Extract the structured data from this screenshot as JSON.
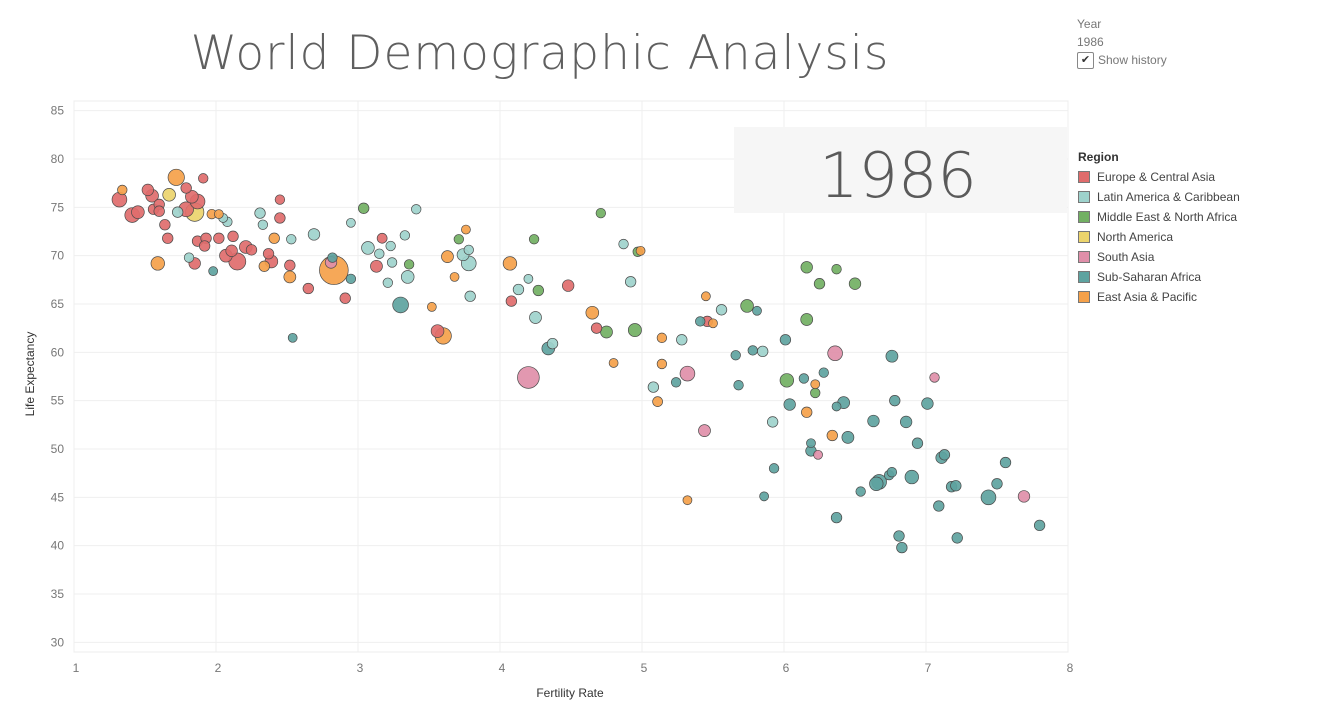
{
  "page": {
    "title": "World Demographic Analysis"
  },
  "controls": {
    "year_label": "Year",
    "year_value": "1986",
    "show_history_label": "Show history",
    "show_history_checked": true
  },
  "legend": {
    "title": "Region",
    "items": [
      {
        "label": "Europe & Central Asia",
        "color": "#e06c6c"
      },
      {
        "label": "Latin America & Caribbean",
        "color": "#9ed2cc"
      },
      {
        "label": "Middle East & North Africa",
        "color": "#72b063"
      },
      {
        "label": "North America",
        "color": "#ecd46c"
      },
      {
        "label": "South Asia",
        "color": "#df8fa9"
      },
      {
        "label": "Sub-Saharan Africa",
        "color": "#5ea3a0"
      },
      {
        "label": "East Asia & Pacific",
        "color": "#f5a14a"
      }
    ]
  },
  "chart_data": {
    "type": "scatter",
    "title": "World Demographic Analysis",
    "year_overlay": "1986",
    "xlabel": "Fertility Rate",
    "ylabel": "Life Expectancy",
    "xlim": [
      1,
      8
    ],
    "ylim": [
      29,
      86
    ],
    "xticks": [
      1,
      2,
      3,
      4,
      5,
      6,
      7,
      8
    ],
    "yticks": [
      30,
      35,
      40,
      45,
      50,
      55,
      60,
      65,
      70,
      75,
      80,
      85
    ],
    "grid": true,
    "legend_position": "right",
    "size_encoding": "population (relative bubble size, 1-10)",
    "series": [
      {
        "name": "Europe & Central Asia",
        "points": [
          [
            1.32,
            75.8,
            2
          ],
          [
            1.41,
            74.2,
            2
          ],
          [
            1.45,
            74.5,
            1.5
          ],
          [
            1.52,
            76.8,
            1.2
          ],
          [
            1.55,
            76.2,
            1.5
          ],
          [
            1.56,
            74.8,
            1
          ],
          [
            1.6,
            75.3,
            1
          ],
          [
            1.6,
            74.6,
            1
          ],
          [
            1.64,
            73.2,
            1
          ],
          [
            1.66,
            71.8,
            1
          ],
          [
            1.79,
            77.0,
            1
          ],
          [
            1.79,
            74.8,
            2
          ],
          [
            1.83,
            76.1,
            1.5
          ],
          [
            1.87,
            75.6,
            2
          ],
          [
            1.85,
            69.2,
            1.2
          ],
          [
            1.87,
            71.5,
            1
          ],
          [
            1.91,
            78.0,
            0.8
          ],
          [
            1.93,
            71.8,
            1
          ],
          [
            1.92,
            71.0,
            1
          ],
          [
            2.02,
            71.8,
            1
          ],
          [
            2.07,
            70.0,
            1.5
          ],
          [
            2.11,
            70.5,
            1.2
          ],
          [
            2.12,
            72.0,
            1
          ],
          [
            2.15,
            69.4,
            2.7
          ],
          [
            2.21,
            70.9,
            1.5
          ],
          [
            2.25,
            70.6,
            1
          ],
          [
            2.37,
            70.2,
            1
          ],
          [
            2.39,
            69.4,
            1.5
          ],
          [
            2.45,
            75.8,
            0.8
          ],
          [
            2.45,
            73.9,
            1
          ],
          [
            2.52,
            69.0,
            1
          ],
          [
            2.65,
            66.6,
            1
          ],
          [
            2.91,
            65.6,
            1
          ],
          [
            3.13,
            68.9,
            1.3
          ],
          [
            3.17,
            71.8,
            0.9
          ],
          [
            3.56,
            62.2,
            1.5
          ],
          [
            4.08,
            65.3,
            1
          ],
          [
            4.48,
            66.9,
            1.2
          ],
          [
            4.68,
            62.5,
            1
          ],
          [
            5.46,
            63.2,
            1
          ]
        ]
      },
      {
        "name": "Latin America & Caribbean",
        "points": [
          [
            1.73,
            74.5,
            1
          ],
          [
            1.81,
            69.8,
            0.8
          ],
          [
            2.05,
            73.9,
            0.7
          ],
          [
            2.08,
            73.5,
            0.8
          ],
          [
            2.31,
            74.4,
            1
          ],
          [
            2.33,
            73.2,
            0.8
          ],
          [
            2.53,
            71.7,
            0.8
          ],
          [
            2.69,
            72.2,
            1.2
          ],
          [
            2.95,
            73.4,
            0.7
          ],
          [
            3.07,
            70.8,
            1.5
          ],
          [
            3.15,
            70.2,
            0.8
          ],
          [
            3.21,
            67.2,
            0.8
          ],
          [
            3.23,
            71.0,
            0.8
          ],
          [
            3.24,
            69.3,
            0.8
          ],
          [
            3.33,
            72.1,
            0.8
          ],
          [
            3.35,
            67.8,
            1.5
          ],
          [
            3.41,
            74.8,
            0.8
          ],
          [
            3.74,
            70.1,
            1.3
          ],
          [
            3.78,
            70.6,
            0.8
          ],
          [
            3.78,
            69.2,
            2
          ],
          [
            3.79,
            65.8,
            1
          ],
          [
            4.13,
            66.5,
            1
          ],
          [
            4.2,
            67.6,
            0.7
          ],
          [
            4.25,
            63.6,
            1.3
          ],
          [
            4.37,
            60.9,
            1
          ],
          [
            4.87,
            71.2,
            0.8
          ],
          [
            4.92,
            67.3,
            1
          ],
          [
            5.08,
            56.4,
            1
          ],
          [
            5.28,
            61.3,
            1
          ],
          [
            5.56,
            64.4,
            1
          ],
          [
            5.85,
            60.1,
            1
          ],
          [
            5.92,
            52.8,
            1
          ]
        ]
      },
      {
        "name": "Middle East & North Africa",
        "points": [
          [
            3.04,
            74.9,
            1
          ],
          [
            3.36,
            69.1,
            0.8
          ],
          [
            3.71,
            71.7,
            0.8
          ],
          [
            4.24,
            71.7,
            0.8
          ],
          [
            4.27,
            66.4,
            1
          ],
          [
            4.71,
            74.4,
            0.8
          ],
          [
            4.75,
            62.1,
            1.3
          ],
          [
            4.95,
            62.3,
            1.6
          ],
          [
            4.97,
            70.4,
            0.8
          ],
          [
            5.74,
            64.8,
            1.5
          ],
          [
            6.02,
            57.1,
            1.7
          ],
          [
            6.16,
            68.8,
            1.2
          ],
          [
            6.16,
            63.4,
            1.3
          ],
          [
            6.22,
            55.8,
            0.8
          ],
          [
            6.25,
            67.1,
            1
          ],
          [
            6.37,
            68.6,
            0.8
          ],
          [
            6.5,
            67.1,
            1.2
          ]
        ]
      },
      {
        "name": "North America",
        "points": [
          [
            1.67,
            76.3,
            1.5
          ],
          [
            1.85,
            74.5,
            3.2
          ]
        ]
      },
      {
        "name": "South Asia",
        "points": [
          [
            2.81,
            69.3,
            1.2
          ],
          [
            4.2,
            57.4,
            4.5
          ],
          [
            5.32,
            57.8,
            2
          ],
          [
            5.44,
            51.9,
            1.3
          ],
          [
            6.24,
            49.4,
            0.7
          ],
          [
            6.36,
            59.9,
            2
          ],
          [
            7.06,
            57.4,
            0.8
          ],
          [
            7.69,
            45.1,
            1.2
          ]
        ]
      },
      {
        "name": "Sub-Saharan Africa",
        "points": [
          [
            1.98,
            68.4,
            0.7
          ],
          [
            2.54,
            61.5,
            0.7
          ],
          [
            2.82,
            69.8,
            0.8
          ],
          [
            2.95,
            67.6,
            0.8
          ],
          [
            3.3,
            64.9,
            2.3
          ],
          [
            4.34,
            60.4,
            1.5
          ],
          [
            5.24,
            56.9,
            0.8
          ],
          [
            5.41,
            63.2,
            0.8
          ],
          [
            5.66,
            59.7,
            0.8
          ],
          [
            5.68,
            56.6,
            0.8
          ],
          [
            5.78,
            60.2,
            0.8
          ],
          [
            5.81,
            64.3,
            0.7
          ],
          [
            5.86,
            45.1,
            0.7
          ],
          [
            5.93,
            48.0,
            0.8
          ],
          [
            6.01,
            61.3,
            1
          ],
          [
            6.04,
            54.6,
            1.2
          ],
          [
            6.14,
            57.3,
            0.8
          ],
          [
            6.19,
            50.6,
            0.7
          ],
          [
            6.19,
            49.8,
            1
          ],
          [
            6.28,
            57.9,
            0.8
          ],
          [
            6.37,
            42.9,
            1
          ],
          [
            6.37,
            54.4,
            0.7
          ],
          [
            6.42,
            54.8,
            1.3
          ],
          [
            6.45,
            51.2,
            1.3
          ],
          [
            6.54,
            45.6,
            0.8
          ],
          [
            6.63,
            52.9,
            1.2
          ],
          [
            6.65,
            46.4,
            1.7
          ],
          [
            6.67,
            46.6,
            2
          ],
          [
            6.74,
            47.3,
            0.8
          ],
          [
            6.76,
            47.6,
            0.8
          ],
          [
            6.76,
            59.6,
            1.3
          ],
          [
            6.78,
            55.0,
            1
          ],
          [
            6.81,
            41.0,
            1
          ],
          [
            6.83,
            39.8,
            1
          ],
          [
            6.86,
            52.8,
            1.2
          ],
          [
            6.9,
            47.1,
            1.7
          ],
          [
            6.94,
            50.6,
            1
          ],
          [
            7.01,
            54.7,
            1.2
          ],
          [
            7.09,
            44.1,
            1
          ],
          [
            7.11,
            49.1,
            1.2
          ],
          [
            7.13,
            49.4,
            1
          ],
          [
            7.18,
            46.1,
            1
          ],
          [
            7.21,
            46.2,
            1
          ],
          [
            7.22,
            40.8,
            1
          ],
          [
            7.44,
            45.0,
            2
          ],
          [
            7.5,
            46.4,
            1
          ],
          [
            7.56,
            48.6,
            1
          ],
          [
            7.8,
            42.1,
            1
          ]
        ]
      },
      {
        "name": "East Asia & Pacific",
        "points": [
          [
            1.34,
            76.8,
            0.8
          ],
          [
            1.59,
            69.2,
            1.7
          ],
          [
            1.72,
            78.1,
            2.5
          ],
          [
            1.97,
            74.3,
            0.8
          ],
          [
            2.02,
            74.3,
            0.7
          ],
          [
            2.34,
            68.9,
            1
          ],
          [
            2.41,
            71.8,
            1
          ],
          [
            2.52,
            67.8,
            1.3
          ],
          [
            2.83,
            68.5,
            8
          ],
          [
            3.52,
            64.7,
            0.7
          ],
          [
            3.6,
            61.7,
            2.5
          ],
          [
            3.63,
            69.9,
            1.3
          ],
          [
            3.68,
            67.8,
            0.7
          ],
          [
            3.76,
            72.7,
            0.7
          ],
          [
            4.07,
            69.2,
            1.7
          ],
          [
            4.65,
            64.1,
            1.5
          ],
          [
            4.8,
            58.9,
            0.7
          ],
          [
            4.99,
            70.5,
            0.7
          ],
          [
            5.11,
            54.9,
            0.9
          ],
          [
            5.14,
            58.8,
            0.8
          ],
          [
            5.14,
            61.5,
            0.8
          ],
          [
            5.32,
            44.7,
            0.7
          ],
          [
            5.45,
            65.8,
            0.7
          ],
          [
            5.5,
            63.0,
            0.7
          ],
          [
            6.16,
            53.8,
            1
          ],
          [
            6.22,
            56.7,
            0.7
          ],
          [
            6.34,
            51.4,
            1
          ]
        ]
      }
    ]
  }
}
